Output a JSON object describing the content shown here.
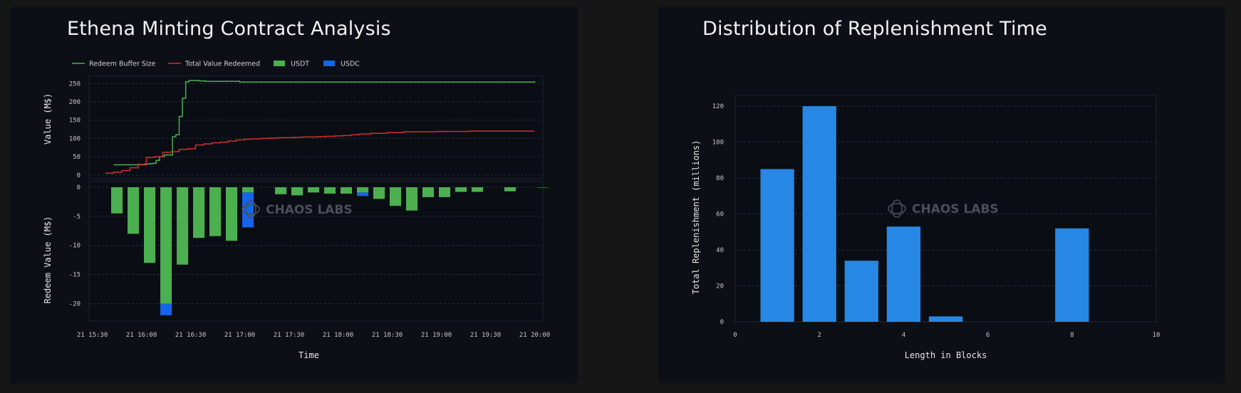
{
  "colors": {
    "background": "#161616",
    "panel": "#0c0f16",
    "plot_bg": "#0a0d14",
    "grid": "#2c313a",
    "text": "#c8c8c8",
    "buffer_line": "#4caf50",
    "redeemed_line": "#d32f2f",
    "usdt": "#4caf50",
    "usdc": "#1565e8",
    "bar_blue": "#2688e4",
    "watermark": "#4a4f58"
  },
  "watermark": "CHAOS LABS",
  "chart_data": [
    {
      "type": "line",
      "title": "Ethena Minting Contract Analysis",
      "legend_position": "top-left",
      "legend": [
        "Redeem Buffer Size",
        "Total Value Redeemed",
        "USDT",
        "USDC"
      ],
      "ylabel": "Value (M$)",
      "ylim": [
        -10,
        270
      ],
      "yticks": [
        0,
        50,
        100,
        150,
        200,
        250
      ],
      "grid": true,
      "x_unit": "minutes since 15:00",
      "series": [
        {
          "name": "Redeem Buffer Size",
          "step": true,
          "x": [
            43,
            53,
            58,
            62,
            65,
            67,
            69,
            71,
            74,
            76,
            79,
            81,
            83,
            85,
            87,
            89,
            91,
            93,
            95,
            99,
            120,
            240,
            300
          ],
          "values": [
            28,
            28,
            29,
            30,
            31,
            32,
            40,
            50,
            55,
            55,
            105,
            110,
            160,
            210,
            255,
            258,
            258,
            258,
            257,
            256,
            254,
            254,
            256
          ]
        },
        {
          "name": "Total Value Redeemed",
          "step": true,
          "x": [
            38,
            43,
            48,
            53,
            58,
            63,
            68,
            73,
            78,
            83,
            88,
            93,
            98,
            103,
            108,
            113,
            118,
            123,
            128,
            133,
            138,
            143,
            148,
            153,
            158,
            163,
            168,
            173,
            178,
            183,
            188,
            193,
            200,
            210,
            220,
            240,
            260,
            280,
            300
          ],
          "values": [
            5,
            8,
            12,
            20,
            28,
            48,
            50,
            62,
            64,
            70,
            72,
            82,
            85,
            88,
            90,
            93,
            96,
            98,
            99,
            100,
            101,
            102,
            102,
            103,
            104,
            104,
            105,
            106,
            107,
            108,
            110,
            112,
            114,
            116,
            118,
            119,
            120,
            120,
            120
          ]
        }
      ]
    },
    {
      "type": "bar",
      "title": "",
      "ylabel": "Redeem Value (M$)",
      "xlabel": "Time",
      "ylim": [
        -23,
        0
      ],
      "yticks": [
        0,
        -5,
        -10,
        -15,
        -20
      ],
      "xticks": [
        "21 15:30",
        "21 16:00",
        "21 16:30",
        "21 17:00",
        "21 17:30",
        "21 18:00",
        "21 18:30",
        "21 19:00",
        "21 19:30",
        "21 20:00"
      ],
      "xtick_minutes": [
        30,
        60,
        90,
        120,
        150,
        180,
        210,
        240,
        270,
        300
      ],
      "xlim": [
        28,
        305
      ],
      "bar_width_minutes": 7,
      "series": [
        {
          "name": "USDT",
          "x": [
            45,
            55,
            65,
            75,
            85,
            95,
            105,
            115,
            125,
            135,
            145,
            155,
            165,
            175,
            185,
            195,
            205,
            215,
            225,
            235,
            245,
            255,
            265,
            285
          ],
          "values": [
            -4.5,
            -8,
            -13,
            -20,
            -13.3,
            -8.7,
            -8.4,
            -9.2,
            -0.9,
            0,
            -1.2,
            -1.4,
            -0.9,
            -1.1,
            -1.1,
            -0.9,
            -2,
            -3.2,
            -4,
            -1.7,
            -1.7,
            -0.8,
            -0.8,
            -0.7
          ]
        },
        {
          "name": "USDC",
          "x": [
            75,
            125,
            195,
            305
          ],
          "values": [
            -2,
            -6,
            -0.6,
            -0.1
          ]
        }
      ]
    },
    {
      "type": "bar",
      "title": "Distribution of Replenishment Time",
      "xlabel": "Length in Blocks",
      "ylabel": "Total Replenishment (millions)",
      "xlim": [
        0,
        10
      ],
      "ylim": [
        0,
        126
      ],
      "xticks": [
        0,
        2,
        4,
        6,
        8,
        10
      ],
      "yticks": [
        0,
        20,
        40,
        60,
        80,
        100,
        120
      ],
      "grid": true,
      "categories": [
        1,
        2,
        3,
        4,
        5,
        8
      ],
      "values": [
        85,
        120,
        34,
        53,
        3,
        52
      ]
    }
  ]
}
